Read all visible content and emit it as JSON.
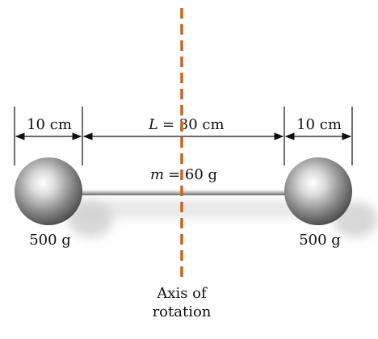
{
  "dimensions": {
    "left_sphere_width": "10 cm",
    "rod_length_symbol": "L",
    "rod_length_value": "= 30 cm",
    "right_sphere_width": "10 cm"
  },
  "rod": {
    "mass_symbol": "m",
    "mass_value": "= 60 g"
  },
  "spheres": {
    "left_mass": "500 g",
    "right_mass": "500 g"
  },
  "axis": {
    "label_line1": "Axis of",
    "label_line2": "rotation",
    "color": "#c8641e"
  }
}
